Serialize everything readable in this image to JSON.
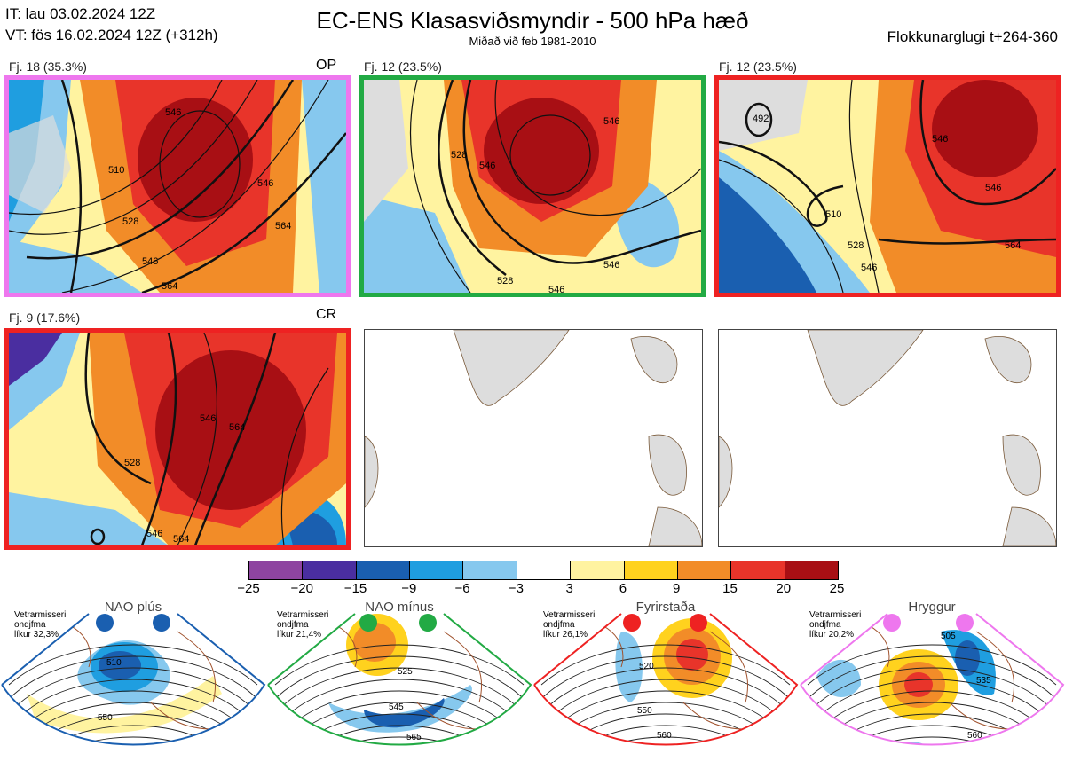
{
  "header": {
    "it_line": "IT: lau 03.02.2024 12Z",
    "vt_line": "VT: fös 16.02.2024 12Z  (+312h)",
    "title": "EC-ENS Klasasviðsmyndir - 500 hPa hæð",
    "subtitle": "Miðað við feb 1981-2010",
    "window": "Flokkunarglugi t+264-360"
  },
  "panels": [
    {
      "label": "Fj. 18 (35.3%)",
      "tag": "OP",
      "border": "#ee77ee",
      "contours": [
        "510",
        "528",
        "546",
        "564",
        "546",
        "546",
        "564"
      ]
    },
    {
      "label": "Fj. 12 (23.5%)",
      "tag": "",
      "border": "#22aa44",
      "contours": [
        "528",
        "546",
        "546",
        "546",
        "546",
        "528"
      ]
    },
    {
      "label": "Fj. 12 (23.5%)",
      "tag": "",
      "border": "#ee2222",
      "contours": [
        "492",
        "510",
        "528",
        "546",
        "546",
        "546",
        "564"
      ]
    },
    {
      "label": "Fj. 9 (17.6%)",
      "tag": "CR",
      "border": "#ee2222",
      "contours": [
        "528",
        "546",
        "564",
        "546",
        "564"
      ]
    }
  ],
  "colorbar": {
    "colors": [
      "#8e44a0",
      "#4a2ea0",
      "#1a5fb0",
      "#1f9ee0",
      "#86c8ee",
      "#ffffff",
      "#fff3a0",
      "#ffd21e",
      "#f28c28",
      "#e8342a",
      "#a80f14"
    ],
    "ticks": [
      "−25",
      "−20",
      "−15",
      "−9",
      "−6",
      "−3",
      "3",
      "6",
      "9",
      "15",
      "20",
      "25"
    ]
  },
  "regimes": [
    {
      "name": "NAO plús",
      "desc1": "Vetrarmisseri",
      "desc2": "ondjfma",
      "desc3": "líkur 32,3%",
      "color": "#1a5fb0",
      "contours": [
        "510",
        "550"
      ]
    },
    {
      "name": "NAO mínus",
      "desc1": "Vetrarmisseri",
      "desc2": "ondjfma",
      "desc3": "líkur 21,4%",
      "color": "#22aa44",
      "contours": [
        "525",
        "545",
        "565"
      ]
    },
    {
      "name": "Fyrirstaða",
      "desc1": "Vetrarmisseri",
      "desc2": "ondjfma",
      "desc3": "líkur 26,1%",
      "color": "#ee2222",
      "contours": [
        "520",
        "550",
        "560"
      ]
    },
    {
      "name": "Hryggur",
      "desc1": "Vetrarmisseri",
      "desc2": "ondjfma",
      "desc3": "líkur 20,2%",
      "color": "#ee77ee",
      "contours": [
        "505",
        "535",
        "560"
      ]
    }
  ]
}
